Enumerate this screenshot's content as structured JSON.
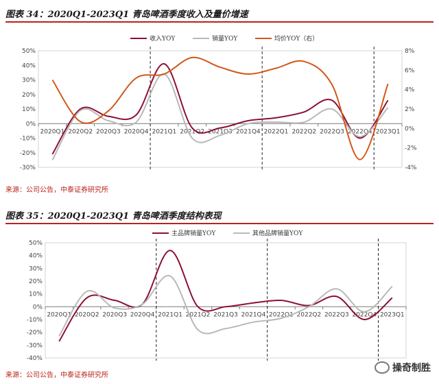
{
  "panels": [
    {
      "title": "图表 34：2020Q1-2023Q1 青岛啤酒季度收入及量价增速",
      "source": "来源：公司公告，中泰证券研究所"
    },
    {
      "title": "图表 35：2020Q1-2023Q1 青岛啤酒季度结构表现",
      "source": "来源：公司公告，中泰证券研究所"
    }
  ],
  "watermark": {
    "text": "操奇制胜",
    "icon": "wechat-icon"
  },
  "colors": {
    "rule": "#b8231a",
    "dark_red": "#8c1030",
    "gray": "#b8b8b8",
    "orange": "#d2561a"
  },
  "chart_data": [
    {
      "type": "line",
      "title": "图表 34：2020Q1-2023Q1 青岛啤酒季度收入及量价增速",
      "categories": [
        "2020Q1",
        "2020Q2",
        "2020Q3",
        "2020Q4",
        "2021Q1",
        "2021Q2",
        "2021Q3",
        "2021Q4",
        "2022Q1",
        "2022Q2",
        "2022Q3",
        "2022Q4",
        "2023Q1"
      ],
      "ylim": [
        -30,
        50
      ],
      "yticks": [
        "50%",
        "40%",
        "30%",
        "20%",
        "10%",
        "0%",
        "-10%",
        "-20%",
        "-30%"
      ],
      "y2lim": [
        -4,
        8
      ],
      "y2ticks": [
        "8%",
        "6%",
        "4%",
        "2%",
        "0%",
        "-2%",
        "-4%"
      ],
      "legend_position": "top",
      "dashed_after": [
        "2020Q4",
        "2021Q4",
        "2022Q4"
      ],
      "series": [
        {
          "name": "收入YOY",
          "axis": "left",
          "color": "#8c1030",
          "values": [
            -21,
            10,
            5,
            6,
            41,
            -3,
            -3,
            2,
            4,
            8,
            16,
            -10,
            16
          ]
        },
        {
          "name": "销量YOY",
          "axis": "left",
          "color": "#b8b8b8",
          "values": [
            -25,
            9,
            2,
            1,
            34,
            -10,
            -8,
            0,
            1,
            1,
            10,
            -9,
            11
          ]
        },
        {
          "name": "均价YOY（右）",
          "axis": "right",
          "color": "#d2561a",
          "values": [
            5.0,
            0.7,
            1.8,
            5.2,
            5.6,
            7.3,
            6.3,
            5.6,
            6.2,
            6.9,
            4.5,
            -3.2,
            4.6
          ]
        }
      ]
    },
    {
      "type": "line",
      "title": "图表 35：2020Q1-2023Q1 青岛啤酒季度结构表现",
      "categories": [
        "2020Q1",
        "2020Q2",
        "2020Q3",
        "2020Q4",
        "2021Q1",
        "2021Q2",
        "2021Q3",
        "2021Q4",
        "2022Q1",
        "2022Q2",
        "2022Q3",
        "2022Q4",
        "2023Q1"
      ],
      "ylim": [
        -40,
        50
      ],
      "yticks": [
        "50%",
        "40%",
        "30%",
        "20%",
        "10%",
        "0%",
        "-10%",
        "-20%",
        "-30%",
        "-40%"
      ],
      "legend_position": "top",
      "dashed_after": [
        "2020Q4",
        "2021Q4",
        "2022Q4"
      ],
      "series": [
        {
          "name": "主品牌销量YOY",
          "axis": "left",
          "color": "#8c1030",
          "values": [
            -27,
            7,
            5,
            2,
            44,
            0,
            0,
            3,
            5,
            1,
            8,
            -10,
            7
          ]
        },
        {
          "name": "其他品牌销量YOY",
          "axis": "left",
          "color": "#b8b8b8",
          "values": [
            -23,
            12,
            -1,
            2,
            24,
            -18,
            -17,
            -12,
            -9,
            0,
            14,
            -4,
            16
          ]
        }
      ]
    }
  ]
}
